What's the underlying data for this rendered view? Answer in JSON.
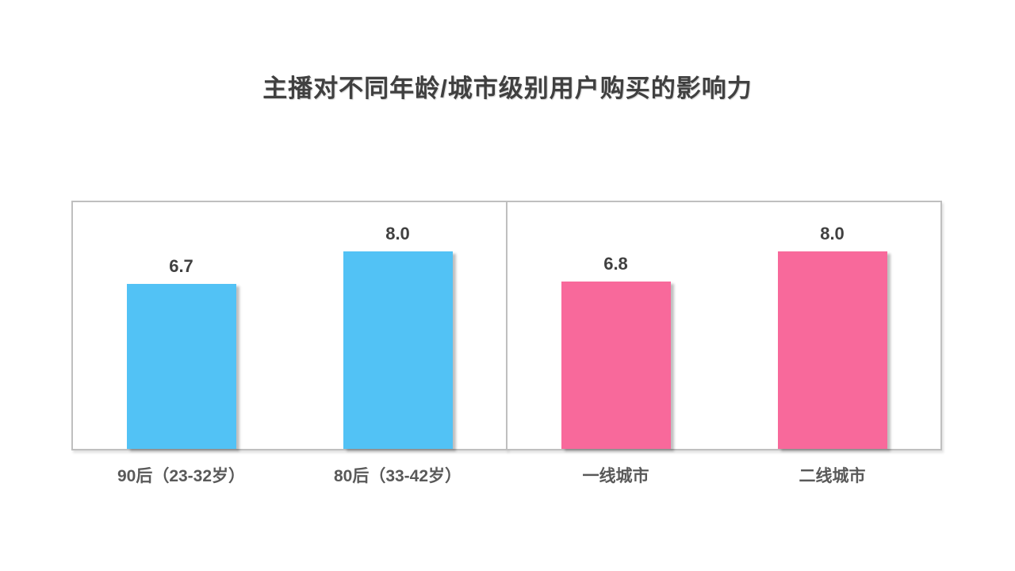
{
  "chart_data": {
    "type": "bar",
    "title": "主播对不同年龄/城市级别用户购买的影响力",
    "xlabel": "",
    "ylabel": "",
    "ylim": [
      0,
      10
    ],
    "grid": false,
    "legend": "none",
    "value_labels_shown": true,
    "panels": [
      {
        "name": "age-groups",
        "color": "#52C2F5",
        "categories": [
          "90后（23-32岁）",
          "80后（33-42岁）"
        ],
        "values": [
          6.7,
          8.0
        ],
        "labels": [
          "6.7",
          "8.0"
        ]
      },
      {
        "name": "city-tiers",
        "color": "#F8699B",
        "categories": [
          "一线城市",
          "二线城市"
        ],
        "values": [
          6.8,
          8.0
        ],
        "labels": [
          "6.8",
          "8.0"
        ]
      }
    ]
  },
  "colors": {
    "bar_blue": "#52C2F5",
    "bar_pink": "#F8699B",
    "panel_border": "#BFBFBF",
    "title_text": "#404040",
    "value_text": "#404040",
    "category_text": "#595959",
    "background": "#FFFFFF"
  }
}
